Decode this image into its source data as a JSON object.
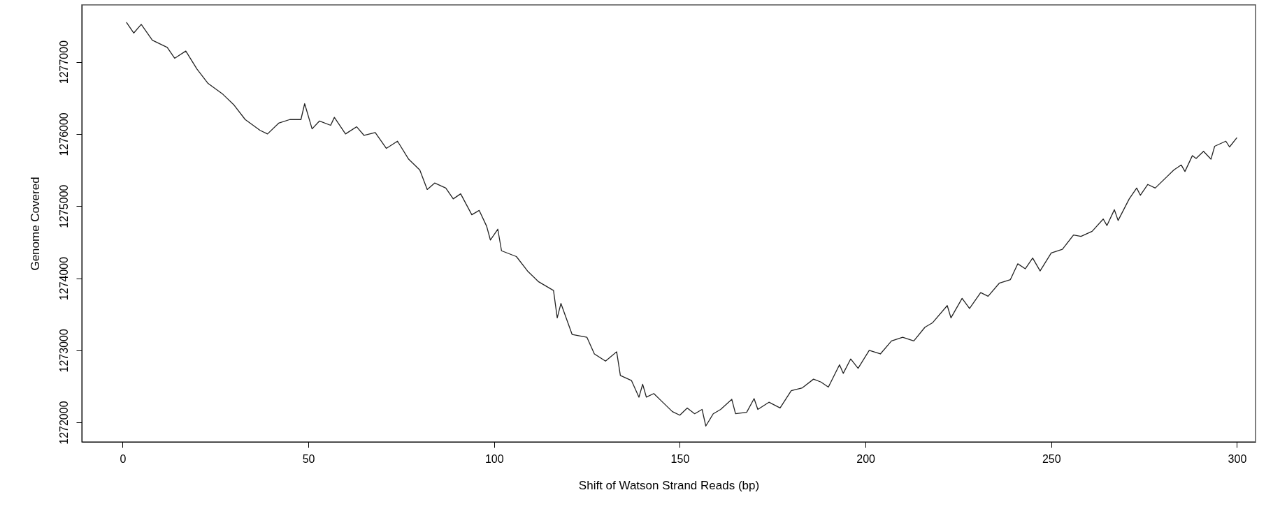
{
  "chart_data": {
    "type": "line",
    "xlabel": "Shift of Watson Strand Reads (bp)",
    "ylabel": "Genome Covered",
    "xlim": [
      -11,
      305
    ],
    "ylim": [
      1271730,
      1277790
    ],
    "xticks": [
      0,
      50,
      100,
      150,
      200,
      250,
      300
    ],
    "yticks": [
      1272000,
      1273000,
      1274000,
      1275000,
      1276000,
      1277000
    ],
    "grid": false,
    "line_style": "solid",
    "series": [
      {
        "color": "#222222",
        "x": [
          1,
          3,
          5,
          8,
          12,
          14,
          17,
          20,
          23,
          27,
          30,
          33,
          37,
          39,
          42,
          45,
          48,
          49,
          51,
          53,
          56,
          57,
          60,
          63,
          65,
          68,
          71,
          74,
          77,
          80,
          82,
          84,
          87,
          89,
          91,
          94,
          96,
          98,
          99,
          101,
          102,
          106,
          109,
          112,
          116,
          117,
          118,
          121,
          125,
          127,
          130,
          133,
          134,
          137,
          139,
          140,
          141,
          143,
          145,
          148,
          150,
          152,
          154,
          156,
          157,
          159,
          161,
          164,
          165,
          168,
          170,
          171,
          174,
          177,
          180,
          183,
          186,
          188,
          190,
          193,
          194,
          196,
          198,
          201,
          204,
          207,
          210,
          213,
          216,
          218,
          222,
          223,
          226,
          228,
          231,
          233,
          236,
          239,
          241,
          243,
          245,
          247,
          250,
          253,
          256,
          258,
          261,
          264,
          265,
          267,
          268,
          271,
          273,
          274,
          276,
          278,
          281,
          283,
          285,
          286,
          288,
          289,
          291,
          293,
          294,
          297,
          298,
          300
        ],
        "values": [
          1277550,
          1277400,
          1277520,
          1277300,
          1277200,
          1277050,
          1277150,
          1276900,
          1276700,
          1276550,
          1276400,
          1276200,
          1276050,
          1276000,
          1276150,
          1276200,
          1276200,
          1276420,
          1276070,
          1276180,
          1276120,
          1276230,
          1276000,
          1276100,
          1275980,
          1276020,
          1275800,
          1275900,
          1275650,
          1275500,
          1275230,
          1275320,
          1275250,
          1275100,
          1275170,
          1274880,
          1274940,
          1274720,
          1274530,
          1274680,
          1274380,
          1274300,
          1274100,
          1273950,
          1273830,
          1273450,
          1273650,
          1273220,
          1273180,
          1272950,
          1272850,
          1272980,
          1272650,
          1272580,
          1272350,
          1272530,
          1272350,
          1272400,
          1272300,
          1272150,
          1272100,
          1272200,
          1272120,
          1272180,
          1271950,
          1272120,
          1272180,
          1272320,
          1272120,
          1272140,
          1272330,
          1272180,
          1272280,
          1272200,
          1272440,
          1272480,
          1272600,
          1272560,
          1272490,
          1272800,
          1272680,
          1272880,
          1272750,
          1273000,
          1272950,
          1273130,
          1273180,
          1273130,
          1273320,
          1273380,
          1273620,
          1273450,
          1273720,
          1273580,
          1273800,
          1273750,
          1273930,
          1273980,
          1274200,
          1274130,
          1274280,
          1274100,
          1274350,
          1274400,
          1274600,
          1274580,
          1274650,
          1274820,
          1274730,
          1274950,
          1274800,
          1275100,
          1275250,
          1275150,
          1275300,
          1275250,
          1275400,
          1275500,
          1275570,
          1275480,
          1275700,
          1275660,
          1275760,
          1275650,
          1275830,
          1275900,
          1275820,
          1275950
        ]
      }
    ]
  }
}
